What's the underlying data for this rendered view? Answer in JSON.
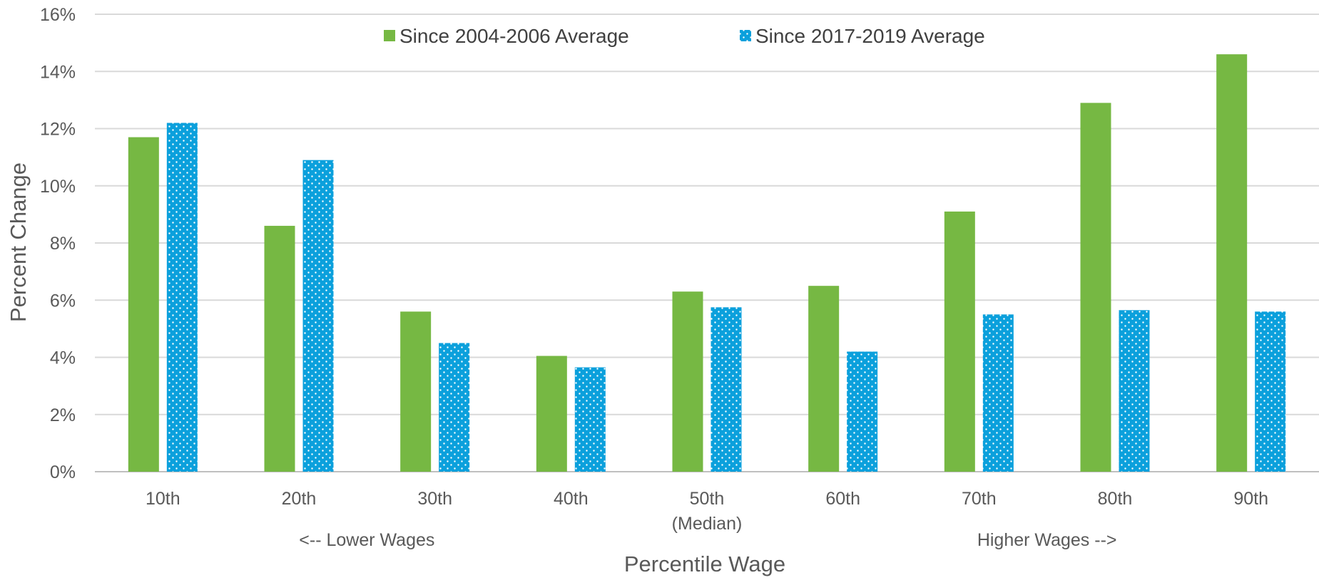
{
  "chart_data": {
    "type": "bar",
    "title": "",
    "xlabel": "Percentile Wage",
    "ylabel": "Percent Change",
    "categories": [
      "10th",
      "20th",
      "30th",
      "40th",
      "50th",
      "60th",
      "70th",
      "80th",
      "90th"
    ],
    "category_sublabels": [
      "",
      "",
      "",
      "",
      "(Median)",
      "",
      "",
      "",
      ""
    ],
    "series": [
      {
        "name": "Since 2004-2006 Average",
        "color": "#76b843",
        "pattern": "solid",
        "values": [
          11.7,
          8.6,
          5.6,
          4.05,
          6.3,
          6.5,
          9.1,
          12.9,
          14.6
        ]
      },
      {
        "name": "Since 2017-2019 Average",
        "color": "#0ba0dc",
        "pattern": "dotted",
        "values": [
          12.2,
          10.9,
          4.5,
          3.65,
          5.75,
          4.2,
          5.5,
          5.65,
          5.6
        ]
      }
    ],
    "ylim": [
      0,
      16
    ],
    "yticks": [
      0,
      2,
      4,
      6,
      8,
      10,
      12,
      14,
      16
    ],
    "ytick_labels": [
      "0%",
      "2%",
      "4%",
      "6%",
      "8%",
      "10%",
      "12%",
      "14%",
      "16%"
    ],
    "grid": true,
    "legend_position": "top-center",
    "annotations": [
      {
        "text": "<-- Lower Wages",
        "anchor_category": 1.5
      },
      {
        "text": "Higher Wages -->",
        "anchor_category": 6.5
      }
    ]
  }
}
